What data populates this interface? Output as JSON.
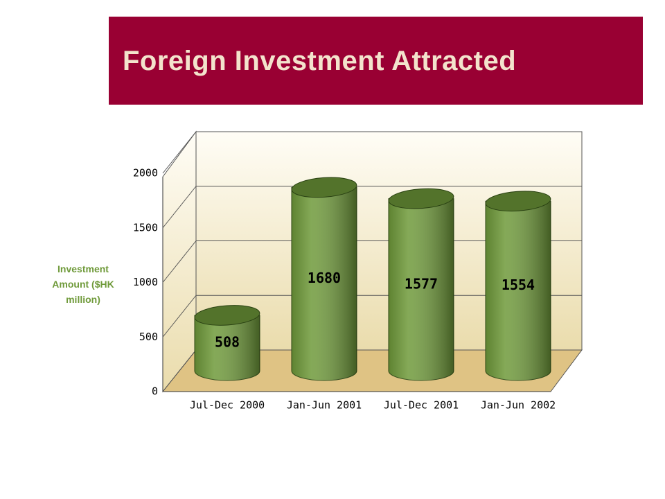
{
  "header": {
    "title": "Foreign Investment Attracted"
  },
  "chart_data": {
    "type": "bar",
    "y_label": "Investment Amount ($HK million)",
    "categories": [
      "Jul-Dec 2000",
      "Jan-Jun 2001",
      "Jul-Dec 2001",
      "Jan-Jun 2002"
    ],
    "values": [
      508,
      1680,
      1577,
      1554
    ],
    "color": "#6f9a3a",
    "ylim": [
      0,
      2000
    ],
    "yticks": [
      0,
      500,
      1000,
      1500,
      2000
    ],
    "grid": true
  }
}
